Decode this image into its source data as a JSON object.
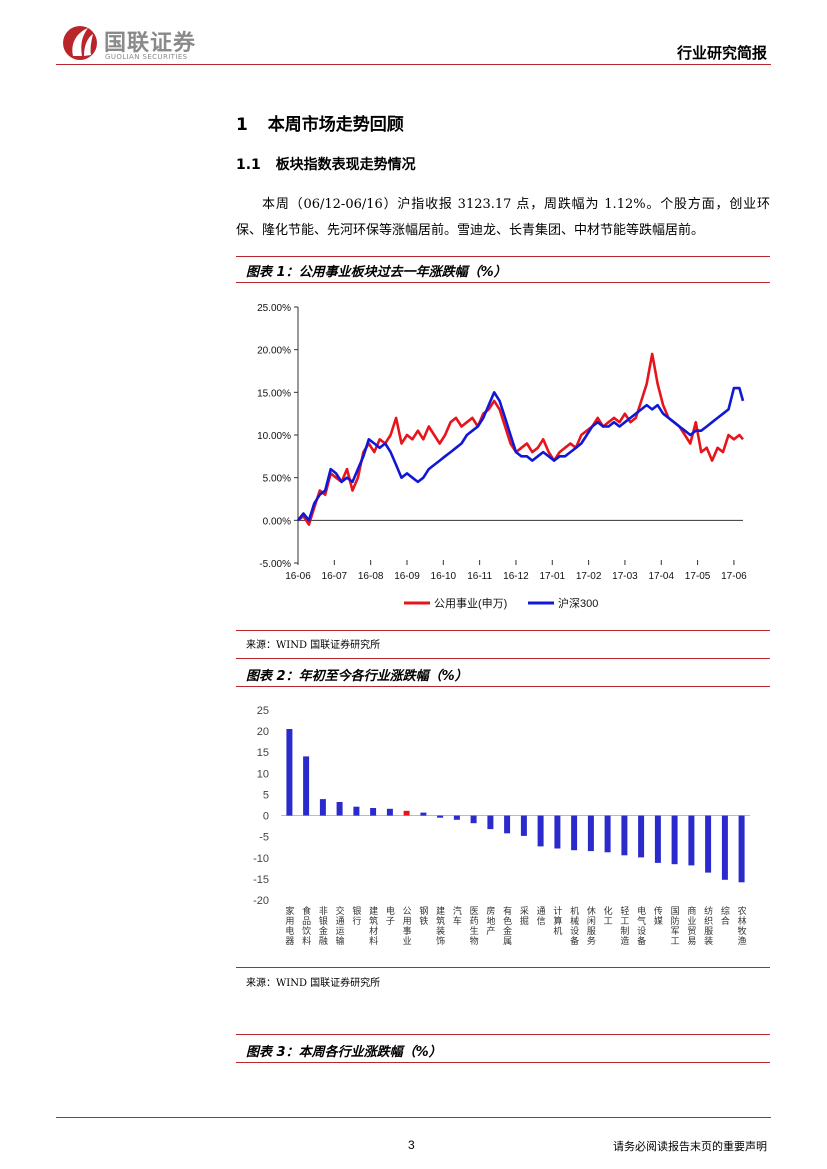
{
  "header": {
    "logo_cn": "国联证券",
    "logo_en": "GUOLIAN SECURITIES",
    "report_type": "行业研究简报",
    "brand_color": "#b8262c"
  },
  "section": {
    "h1_num": "1",
    "h1_title": "本周市场走势回顾",
    "h2_num": "1.1",
    "h2_title": "板块指数表现走势情况",
    "paragraph": "本周（06/12-06/16）沪指收报 3123.17 点，周跌幅为 1.12%。个股方面，创业环保、隆化节能、先河环保等涨幅居前。雪迪龙、长青集团、中材节能等跌幅居前。"
  },
  "figure1": {
    "title": "图表 1：公用事业板块过去一年涨跌幅（%）",
    "source": "来源：WIND 国联证券研究所"
  },
  "figure2": {
    "title": "图表 2：年初至今各行业涨跌幅（%）",
    "source": "来源：WIND 国联证券研究所"
  },
  "figure3": {
    "title": "图表 3：本周各行业涨跌幅（%）"
  },
  "footer": {
    "page": "3",
    "note": "请务必阅读报告末页的重要声明"
  },
  "chart_data": [
    {
      "type": "line",
      "title": "",
      "x_ticks": [
        "16-06",
        "16-07",
        "16-08",
        "16-09",
        "16-10",
        "16-11",
        "16-12",
        "17-01",
        "17-02",
        "17-03",
        "17-04",
        "17-05",
        "17-06"
      ],
      "y_ticks": [
        "-5.00%",
        "0.00%",
        "5.00%",
        "10.00%",
        "15.00%",
        "20.00%",
        "25.00%"
      ],
      "ylim": [
        -5,
        25
      ],
      "x_range": [
        0,
        12.25
      ],
      "series": [
        {
          "name": "公用事业(申万)",
          "color": "#e8141b",
          "points": [
            [
              0,
              0
            ],
            [
              0.15,
              0.5
            ],
            [
              0.3,
              -0.5
            ],
            [
              0.45,
              1.5
            ],
            [
              0.6,
              3.5
            ],
            [
              0.75,
              3
            ],
            [
              0.9,
              5.5
            ],
            [
              1.05,
              5
            ],
            [
              1.2,
              4.5
            ],
            [
              1.35,
              6
            ],
            [
              1.5,
              3.5
            ],
            [
              1.65,
              5
            ],
            [
              1.8,
              8
            ],
            [
              1.95,
              9
            ],
            [
              2.1,
              8
            ],
            [
              2.25,
              9.5
            ],
            [
              2.4,
              9
            ],
            [
              2.55,
              10
            ],
            [
              2.7,
              12
            ],
            [
              2.85,
              9
            ],
            [
              3.0,
              10
            ],
            [
              3.15,
              9.5
            ],
            [
              3.3,
              10.5
            ],
            [
              3.45,
              9.5
            ],
            [
              3.6,
              11
            ],
            [
              3.75,
              10
            ],
            [
              3.9,
              9
            ],
            [
              4.05,
              10
            ],
            [
              4.2,
              11.5
            ],
            [
              4.35,
              12
            ],
            [
              4.5,
              11
            ],
            [
              4.65,
              11.5
            ],
            [
              4.8,
              12
            ],
            [
              4.95,
              11
            ],
            [
              5.1,
              12.5
            ],
            [
              5.25,
              13
            ],
            [
              5.4,
              14
            ],
            [
              5.55,
              13
            ],
            [
              5.7,
              11
            ],
            [
              5.85,
              9
            ],
            [
              6.0,
              8
            ],
            [
              6.15,
              8.5
            ],
            [
              6.3,
              9
            ],
            [
              6.45,
              8
            ],
            [
              6.6,
              8.5
            ],
            [
              6.75,
              9.5
            ],
            [
              6.9,
              8
            ],
            [
              7.05,
              7
            ],
            [
              7.2,
              8
            ],
            [
              7.35,
              8.5
            ],
            [
              7.5,
              9
            ],
            [
              7.65,
              8.5
            ],
            [
              7.8,
              10
            ],
            [
              7.95,
              10.5
            ],
            [
              8.1,
              11
            ],
            [
              8.25,
              12
            ],
            [
              8.4,
              11
            ],
            [
              8.55,
              11.5
            ],
            [
              8.7,
              12
            ],
            [
              8.85,
              11.5
            ],
            [
              9.0,
              12.5
            ],
            [
              9.15,
              11.5
            ],
            [
              9.3,
              12
            ],
            [
              9.45,
              14
            ],
            [
              9.6,
              16
            ],
            [
              9.75,
              19.5
            ],
            [
              9.9,
              16
            ],
            [
              10.05,
              13.5
            ],
            [
              10.2,
              12
            ],
            [
              10.35,
              11.5
            ],
            [
              10.5,
              11
            ],
            [
              10.65,
              10
            ],
            [
              10.8,
              9
            ],
            [
              10.95,
              11.5
            ],
            [
              11.1,
              8
            ],
            [
              11.25,
              8.5
            ],
            [
              11.4,
              7
            ],
            [
              11.55,
              8.5
            ],
            [
              11.7,
              8
            ],
            [
              11.85,
              10
            ],
            [
              12.0,
              9.5
            ],
            [
              12.15,
              10
            ],
            [
              12.25,
              9.5
            ]
          ]
        },
        {
          "name": "沪深300",
          "color": "#1018d6",
          "points": [
            [
              0,
              0
            ],
            [
              0.15,
              0.8
            ],
            [
              0.3,
              0
            ],
            [
              0.45,
              2
            ],
            [
              0.6,
              3
            ],
            [
              0.75,
              3.5
            ],
            [
              0.9,
              6
            ],
            [
              1.05,
              5.5
            ],
            [
              1.2,
              4.5
            ],
            [
              1.35,
              5
            ],
            [
              1.5,
              4.5
            ],
            [
              1.65,
              6
            ],
            [
              1.8,
              7.5
            ],
            [
              1.95,
              9.5
            ],
            [
              2.1,
              9
            ],
            [
              2.25,
              8.5
            ],
            [
              2.4,
              9
            ],
            [
              2.55,
              8
            ],
            [
              2.7,
              6.5
            ],
            [
              2.85,
              5
            ],
            [
              3.0,
              5.5
            ],
            [
              3.15,
              5
            ],
            [
              3.3,
              4.5
            ],
            [
              3.45,
              5
            ],
            [
              3.6,
              6
            ],
            [
              3.75,
              6.5
            ],
            [
              3.9,
              7
            ],
            [
              4.05,
              7.5
            ],
            [
              4.2,
              8
            ],
            [
              4.35,
              8.5
            ],
            [
              4.5,
              9
            ],
            [
              4.65,
              10
            ],
            [
              4.8,
              10.5
            ],
            [
              4.95,
              11
            ],
            [
              5.1,
              12
            ],
            [
              5.25,
              13.5
            ],
            [
              5.4,
              15
            ],
            [
              5.55,
              14
            ],
            [
              5.7,
              12
            ],
            [
              5.85,
              10
            ],
            [
              6.0,
              8
            ],
            [
              6.15,
              7.5
            ],
            [
              6.3,
              7.5
            ],
            [
              6.45,
              7
            ],
            [
              6.6,
              7.5
            ],
            [
              6.75,
              8
            ],
            [
              6.9,
              7.5
            ],
            [
              7.05,
              7
            ],
            [
              7.2,
              7.5
            ],
            [
              7.35,
              7.5
            ],
            [
              7.5,
              8
            ],
            [
              7.65,
              8.5
            ],
            [
              7.8,
              9
            ],
            [
              7.95,
              10
            ],
            [
              8.1,
              11
            ],
            [
              8.25,
              11.5
            ],
            [
              8.4,
              11
            ],
            [
              8.55,
              11
            ],
            [
              8.7,
              11.5
            ],
            [
              8.85,
              11
            ],
            [
              9.0,
              11.5
            ],
            [
              9.15,
              12
            ],
            [
              9.3,
              12.5
            ],
            [
              9.45,
              13
            ],
            [
              9.6,
              13.5
            ],
            [
              9.75,
              13
            ],
            [
              9.9,
              13.5
            ],
            [
              10.05,
              12.5
            ],
            [
              10.2,
              12
            ],
            [
              10.35,
              11.5
            ],
            [
              10.5,
              11
            ],
            [
              10.65,
              10.5
            ],
            [
              10.8,
              10
            ],
            [
              10.95,
              10.5
            ],
            [
              11.1,
              10.5
            ],
            [
              11.25,
              11
            ],
            [
              11.4,
              11.5
            ],
            [
              11.55,
              12
            ],
            [
              11.7,
              12.5
            ],
            [
              11.85,
              13
            ],
            [
              12.0,
              15.5
            ],
            [
              12.15,
              15.5
            ],
            [
              12.25,
              14
            ]
          ]
        }
      ]
    },
    {
      "type": "bar",
      "title": "",
      "ylim": [
        -20,
        25
      ],
      "y_ticks": [
        "25",
        "20",
        "15",
        "10",
        "5",
        "0",
        "-5",
        "-10",
        "-15",
        "-20"
      ],
      "bar_color": "#2b2bcc",
      "highlight_color": "#e8141b",
      "highlight_category": "公用事业",
      "categories": [
        "家用电器",
        "食品饮料",
        "非银金融",
        "交通运输",
        "银行",
        "建筑材料",
        "电子",
        "公用事业",
        "钢铁",
        "建筑装饰",
        "汽车",
        "医药生物",
        "房地产",
        "有色金属",
        "采掘",
        "通信",
        "计算机",
        "机械设备",
        "休闲服务",
        "化工",
        "轻工制造",
        "电气设备",
        "传媒",
        "国防军工",
        "商业贸易",
        "纺织服装",
        "综合",
        "农林牧渔"
      ],
      "values": [
        20.5,
        14,
        3.9,
        3.2,
        2.1,
        1.8,
        1.6,
        1.12,
        0.7,
        -0.5,
        -1.0,
        -1.8,
        -3.2,
        -4.2,
        -4.8,
        -7.3,
        -7.8,
        -8.2,
        -8.4,
        -8.7,
        -9.4,
        -9.9,
        -11.2,
        -11.5,
        -11.8,
        -13.5,
        -15.2,
        -15.8
      ]
    }
  ]
}
